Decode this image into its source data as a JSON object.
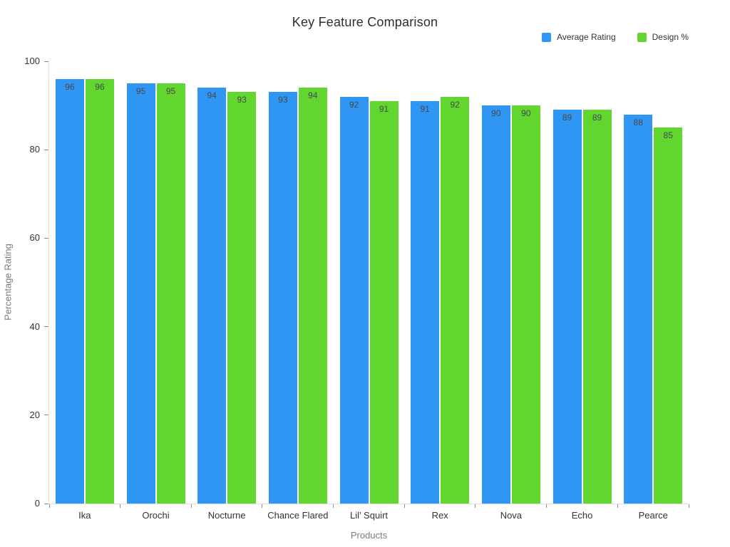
{
  "chart_data": {
    "type": "bar",
    "title": "Key Feature Comparison",
    "xlabel": "Products",
    "ylabel": "Percentage Rating",
    "categories": [
      "Ika",
      "Orochi",
      "Nocturne",
      "Chance Flared",
      "Lil’ Squirt",
      "Rex",
      "Nova",
      "Echo",
      "Pearce"
    ],
    "series": [
      {
        "name": "Average Rating",
        "color": "#3096F3",
        "values": [
          96,
          95,
          94,
          93,
          92,
          91,
          90,
          89,
          88
        ]
      },
      {
        "name": "Design %",
        "color": "#61D62E",
        "values": [
          96,
          95,
          93,
          94,
          91,
          92,
          90,
          89,
          85
        ]
      }
    ],
    "ylim": [
      0,
      100
    ],
    "yticks": [
      0,
      20,
      40,
      60,
      80,
      100
    ],
    "grid": false,
    "legend_position": "top-right",
    "value_labels": "inside-top",
    "value_label_color": "#42494e",
    "background_color": "#ffffff"
  }
}
